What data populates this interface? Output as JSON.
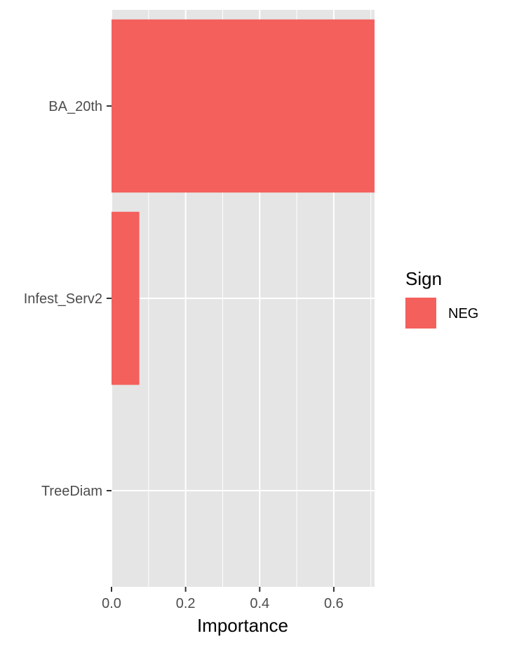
{
  "chart_data": {
    "type": "bar",
    "orientation": "horizontal",
    "categories": [
      "BA_20th",
      "Infest_Serv2",
      "TreeDiam"
    ],
    "series": [
      {
        "name": "NEG",
        "values": [
          0.71,
          0.075,
          0.0
        ]
      }
    ],
    "xlabel": "Importance",
    "ylabel": "",
    "xlim": [
      0.0,
      0.71
    ],
    "xticks": [
      "0.0",
      "0.2",
      "0.4",
      "0.6"
    ],
    "grid": true,
    "legend": {
      "title": "Sign",
      "placement": "right",
      "entries": [
        "NEG"
      ]
    },
    "colors": {
      "panel_background": "#E5E5E5",
      "grid": "#FFFFFF",
      "bar_NEG": "#F4605C",
      "tick_text": "#4D4D4D"
    }
  }
}
